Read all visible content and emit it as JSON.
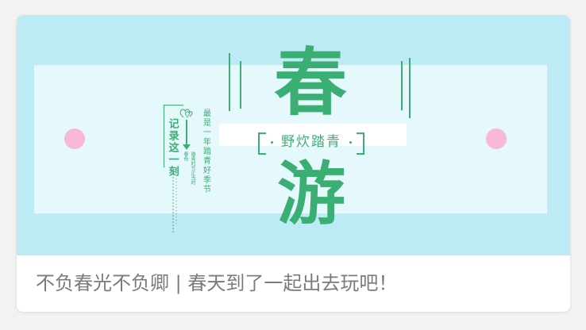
{
  "banner": {
    "big_char_top": "春",
    "big_char_bottom": "游",
    "subtitle": "野炊踏青",
    "record_label": "记录这一刻",
    "season_phrase": "最是一年踏青好季节",
    "tiny_label_a": "春色",
    "tiny_label_b": "踏青时节正当时",
    "colors": {
      "banner_bg": "#bdebf5",
      "panel_bg": "#e5f8fc",
      "accent_green": "#3bae74",
      "accent_pink": "#f8b8d6"
    }
  },
  "caption": {
    "text": "不负春光不负卿 | 春天到了一起出去玩吧！"
  }
}
